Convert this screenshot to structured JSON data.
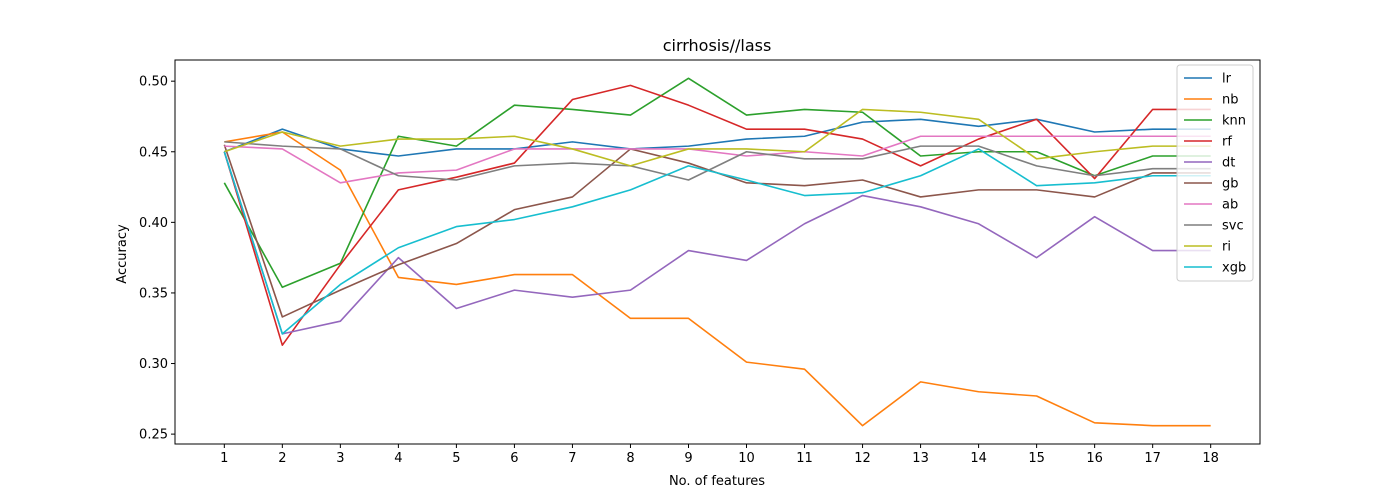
{
  "chart_data": {
    "type": "line",
    "title": "cirrhosis//lass",
    "xlabel": "No. of features",
    "ylabel": "Accuracy",
    "x": [
      1,
      2,
      3,
      4,
      5,
      6,
      7,
      8,
      9,
      10,
      11,
      12,
      13,
      14,
      15,
      16,
      17,
      18
    ],
    "xlim": [
      0.15,
      18.85
    ],
    "ylim": [
      0.243,
      0.515
    ],
    "yticks": [
      0.25,
      0.3,
      0.35,
      0.4,
      0.45,
      0.5
    ],
    "ytick_labels": [
      "0.25",
      "0.30",
      "0.35",
      "0.40",
      "0.45",
      "0.50"
    ],
    "grid": false,
    "legend_position": "upper right",
    "series": [
      {
        "name": "lr",
        "color": "#1f77b4",
        "values": [
          0.45,
          0.466,
          0.452,
          0.447,
          0.452,
          0.452,
          0.457,
          0.452,
          0.454,
          0.459,
          0.461,
          0.471,
          0.473,
          0.468,
          0.473,
          0.464,
          0.466,
          0.466
        ]
      },
      {
        "name": "nb",
        "color": "#ff7f0e",
        "values": [
          0.457,
          0.464,
          0.437,
          0.361,
          0.356,
          0.363,
          0.363,
          0.332,
          0.332,
          0.301,
          0.296,
          0.256,
          0.287,
          0.28,
          0.277,
          0.258,
          0.256,
          0.256
        ]
      },
      {
        "name": "knn",
        "color": "#2ca02c",
        "values": [
          0.428,
          0.354,
          0.371,
          0.461,
          0.454,
          0.483,
          0.48,
          0.476,
          0.502,
          0.476,
          0.48,
          0.478,
          0.447,
          0.45,
          0.45,
          0.433,
          0.447,
          0.447
        ]
      },
      {
        "name": "rf",
        "color": "#d62728",
        "values": [
          0.45,
          0.313,
          0.37,
          0.423,
          0.432,
          0.442,
          0.487,
          0.497,
          0.483,
          0.466,
          0.466,
          0.459,
          0.44,
          0.459,
          0.473,
          0.431,
          0.48,
          0.48
        ]
      },
      {
        "name": "dt",
        "color": "#9467bd",
        "values": [
          0.45,
          0.321,
          0.33,
          0.375,
          0.339,
          0.352,
          0.347,
          0.352,
          0.38,
          0.373,
          0.399,
          0.419,
          0.411,
          0.399,
          0.375,
          0.404,
          0.38,
          0.38
        ]
      },
      {
        "name": "gb",
        "color": "#8c564b",
        "values": [
          0.455,
          0.333,
          0.352,
          0.37,
          0.385,
          0.409,
          0.418,
          0.452,
          0.442,
          0.428,
          0.426,
          0.43,
          0.418,
          0.423,
          0.423,
          0.418,
          0.435,
          0.435
        ]
      },
      {
        "name": "ab",
        "color": "#e377c2",
        "values": [
          0.454,
          0.452,
          0.428,
          0.435,
          0.437,
          0.452,
          0.452,
          0.452,
          0.452,
          0.447,
          0.45,
          0.447,
          0.461,
          0.461,
          0.461,
          0.461,
          0.461,
          0.461
        ]
      },
      {
        "name": "svc",
        "color": "#7f7f7f",
        "values": [
          0.457,
          0.454,
          0.452,
          0.433,
          0.43,
          0.44,
          0.442,
          0.44,
          0.43,
          0.45,
          0.445,
          0.445,
          0.454,
          0.454,
          0.44,
          0.433,
          0.438,
          0.438
        ]
      },
      {
        "name": "ri",
        "color": "#bcbd22",
        "values": [
          0.45,
          0.464,
          0.454,
          0.459,
          0.459,
          0.461,
          0.452,
          0.44,
          0.452,
          0.452,
          0.45,
          0.48,
          0.478,
          0.473,
          0.445,
          0.45,
          0.454,
          0.454
        ]
      },
      {
        "name": "xgb",
        "color": "#17becf",
        "values": [
          0.45,
          0.321,
          0.356,
          0.382,
          0.397,
          0.402,
          0.411,
          0.423,
          0.44,
          0.43,
          0.419,
          0.421,
          0.433,
          0.452,
          0.426,
          0.428,
          0.433,
          0.433
        ]
      }
    ]
  }
}
